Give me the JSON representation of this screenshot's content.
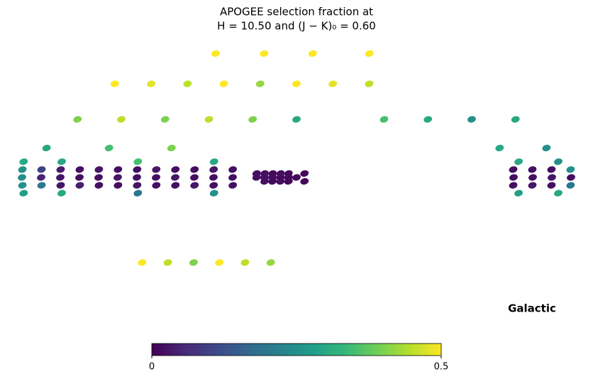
{
  "chart_data": {
    "type": "mollweide",
    "title": [
      "APOGEE selection fraction at",
      "H = 10.50 and (J − K)₀ = 0.60"
    ],
    "coordinate_system": "Galactic",
    "l": [
      40,
      52,
      64,
      76,
      88,
      100,
      112,
      124,
      136,
      148,
      160,
      172,
      40,
      52,
      64,
      76,
      88,
      100,
      112,
      124,
      136,
      148,
      160,
      172,
      40,
      52,
      64,
      76,
      88,
      100,
      112,
      124,
      136,
      148,
      160,
      172,
      52,
      100,
      148,
      172,
      52,
      100,
      148,
      172,
      0,
      5,
      10,
      15,
      20,
      25,
      -5,
      5,
      10,
      15,
      20,
      25,
      -5,
      5,
      10,
      15,
      20,
      -136,
      -148,
      -160,
      -172,
      -136,
      -148,
      -160,
      -172,
      -136,
      -148,
      -160,
      -172,
      -140,
      -165,
      -140,
      -165,
      150,
      120,
      90,
      60,
      30,
      0,
      -60,
      -90,
      -120,
      -150,
      160,
      120,
      80,
      -130,
      -160,
      150,
      120,
      90,
      60,
      30,
      0,
      -30,
      -60,
      100,
      40,
      -20,
      -90,
      120,
      100,
      80,
      60,
      40,
      20
    ],
    "b": [
      -4,
      -4,
      -4,
      -4,
      -4,
      -4,
      -4,
      -4,
      -4,
      -4,
      -4,
      -4,
      0,
      0,
      0,
      0,
      0,
      0,
      0,
      0,
      0,
      0,
      0,
      0,
      4,
      4,
      4,
      4,
      4,
      4,
      4,
      4,
      4,
      4,
      4,
      4,
      8,
      8,
      8,
      8,
      -8,
      -8,
      -8,
      -8,
      0,
      0,
      0,
      0,
      0,
      0,
      2,
      2,
      2,
      2,
      2,
      2,
      -2,
      -2,
      -2,
      -2,
      -2,
      -4,
      -4,
      -4,
      -4,
      0,
      0,
      0,
      0,
      4,
      4,
      4,
      4,
      8,
      8,
      -8,
      -8,
      30,
      30,
      30,
      30,
      30,
      30,
      30,
      30,
      30,
      30,
      15,
      15,
      15,
      15,
      15,
      50,
      50,
      50,
      50,
      50,
      50,
      50,
      50,
      70,
      70,
      70,
      70,
      -45,
      -45,
      -45,
      -45,
      -45,
      -45
    ],
    "values": [
      0.02,
      0.02,
      0.03,
      0.02,
      0.02,
      0.03,
      0.02,
      0.02,
      0.04,
      0.03,
      0.2,
      0.25,
      0.02,
      0.02,
      0.02,
      0.03,
      0.02,
      0.02,
      0.03,
      0.02,
      0.02,
      0.03,
      0.05,
      0.25,
      0.02,
      0.03,
      0.02,
      0.02,
      0.03,
      0.02,
      0.02,
      0.03,
      0.02,
      0.04,
      0.1,
      0.25,
      0.3,
      0.35,
      0.3,
      0.3,
      0.25,
      0.2,
      0.3,
      0.28,
      0.01,
      0.01,
      0.01,
      0.02,
      0.02,
      0.02,
      0.01,
      0.01,
      0.02,
      0.01,
      0.02,
      0.02,
      0.01,
      0.01,
      0.02,
      0.01,
      0.02,
      0.02,
      0.03,
      0.02,
      0.2,
      0.02,
      0.02,
      0.03,
      0.02,
      0.02,
      0.02,
      0.02,
      0.25,
      0.3,
      0.25,
      0.28,
      0.3,
      0.4,
      0.45,
      0.4,
      0.45,
      0.4,
      0.3,
      0.35,
      0.3,
      0.25,
      0.3,
      0.3,
      0.35,
      0.4,
      0.3,
      0.25,
      0.5,
      0.48,
      0.45,
      0.5,
      0.42,
      0.5,
      0.48,
      0.45,
      0.5,
      0.5,
      0.5,
      0.5,
      0.5,
      0.45,
      0.4,
      0.5,
      0.45,
      0.42
    ],
    "colormap": [
      "#440154",
      "#482878",
      "#3e4989",
      "#31688e",
      "#26828e",
      "#1f9e89",
      "#35b779",
      "#6ece58",
      "#b5de2b",
      "#fde725"
    ],
    "clim": [
      0,
      0.5
    ],
    "xticks": [
      0,
      0.5
    ]
  }
}
